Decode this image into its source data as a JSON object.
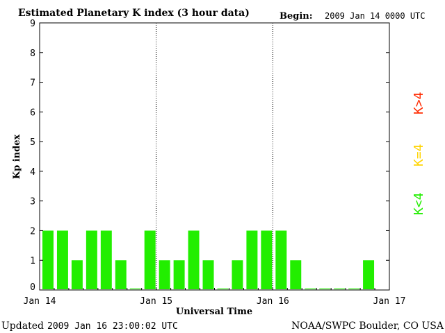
{
  "header": {
    "title": "Estimated Planetary K index (3 hour data)",
    "begin_label": "Begin:",
    "begin_value": "2009 Jan 14 0000 UTC"
  },
  "footer": {
    "updated_label": "Updated",
    "updated_value": "2009 Jan 16 23:00:02 UTC",
    "source": "NOAA/SWPC Boulder, CO USA"
  },
  "legend": [
    {
      "label": "K>4",
      "color": "#ff2a00"
    },
    {
      "label": "K=4",
      "color": "#ffd400"
    },
    {
      "label": "K<4",
      "color": "#22ee00"
    }
  ],
  "chart_data": {
    "type": "bar",
    "title": "Estimated Planetary K index (3 hour data)",
    "xlabel": "Universal Time",
    "ylabel": "Kp index",
    "ylim": [
      0,
      9
    ],
    "yticks": [
      "0",
      "1",
      "2",
      "3",
      "4",
      "5",
      "6",
      "7",
      "8",
      "9"
    ],
    "xticks": [
      "Jan 14",
      "Jan 15",
      "Jan 16",
      "Jan 17"
    ],
    "day_dividers": [
      "Jan 15",
      "Jan 16"
    ],
    "interval_hours": 3,
    "bar_color": "#22ee00",
    "values": [
      2,
      2,
      1,
      2,
      2,
      1,
      0.05,
      2,
      1,
      1,
      2,
      1,
      0.05,
      1,
      2,
      2,
      2,
      1,
      0.05,
      0.05,
      0.05,
      0.05,
      1,
      0
    ]
  }
}
